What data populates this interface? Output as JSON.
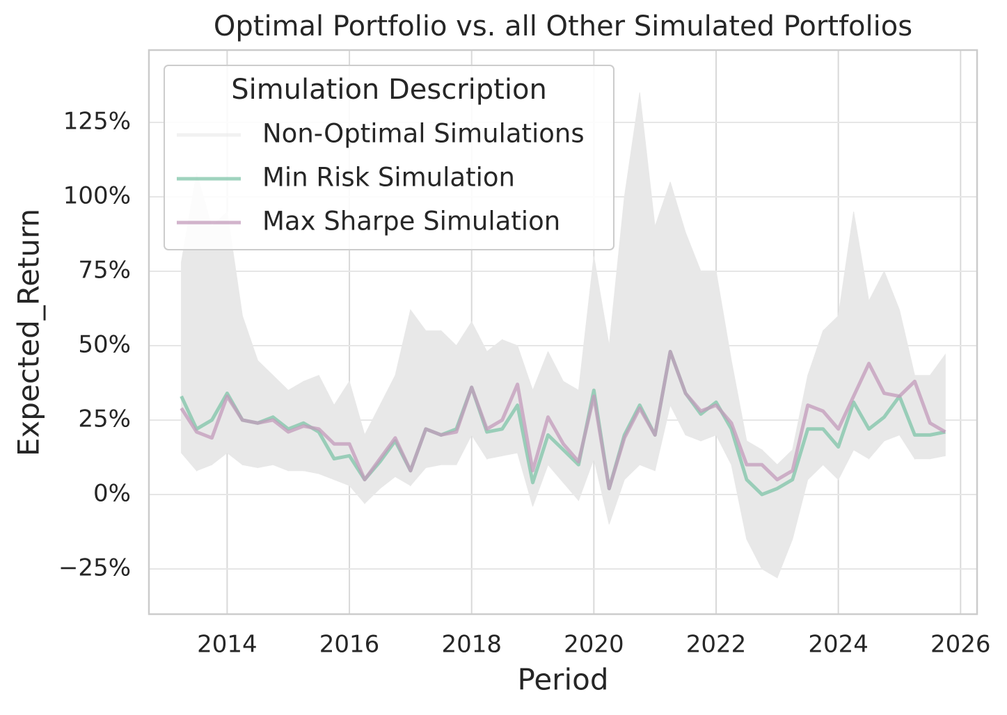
{
  "chart_data": {
    "type": "line",
    "title": "Optimal Portfolio vs. all Other Simulated Portfolios",
    "x_label": "Period",
    "y_label": "Expected_Return",
    "legend_title": "Simulation Description",
    "legend": "upper left",
    "grid": true,
    "x": [
      2013.25,
      2013.5,
      2013.75,
      2014,
      2014.25,
      2014.5,
      2014.75,
      2015,
      2015.25,
      2015.5,
      2015.75,
      2016,
      2016.25,
      2016.5,
      2016.75,
      2017,
      2017.25,
      2017.5,
      2017.75,
      2018,
      2018.25,
      2018.5,
      2018.75,
      2019,
      2019.25,
      2019.5,
      2019.75,
      2020,
      2020.25,
      2020.5,
      2020.75,
      2021,
      2021.25,
      2021.5,
      2021.75,
      2022,
      2022.25,
      2022.5,
      2022.75,
      2023,
      2023.25,
      2023.5,
      2023.75,
      2024,
      2024.25,
      2024.5,
      2024.75,
      2025,
      2025.25,
      2025.5,
      2025.75
    ],
    "xlim": [
      2012.72,
      2026.27
    ],
    "xticks": [
      2014,
      2016,
      2018,
      2020,
      2022,
      2024,
      2026
    ],
    "ylim": [
      -40.2,
      149.3
    ],
    "yticks": [
      {
        "value": -25,
        "label": "−25%"
      },
      {
        "value": 0,
        "label": "0%"
      },
      {
        "value": 25,
        "label": "25%"
      },
      {
        "value": 50,
        "label": "50%"
      },
      {
        "value": 75,
        "label": "75%"
      },
      {
        "value": 100,
        "label": "100%"
      },
      {
        "value": 125,
        "label": "125%"
      }
    ],
    "series": [
      {
        "name": "Non-Optimal Simulations",
        "color": "#e8e8e8",
        "low": [
          14,
          8,
          10,
          14,
          10,
          9,
          10,
          8,
          8,
          7,
          5,
          3,
          -3,
          2,
          6,
          3,
          9,
          10,
          10,
          20,
          12,
          13,
          14,
          -4,
          10,
          4,
          -2,
          12,
          -10,
          5,
          10,
          8,
          30,
          20,
          18,
          20,
          10,
          -15,
          -25,
          -28,
          -15,
          5,
          10,
          5,
          15,
          12,
          18,
          20,
          12,
          12,
          13
        ],
        "high": [
          78,
          108,
          90,
          95,
          60,
          45,
          40,
          35,
          38,
          40,
          30,
          38,
          20,
          30,
          40,
          62,
          55,
          55,
          50,
          58,
          48,
          52,
          50,
          35,
          48,
          38,
          35,
          80,
          50,
          100,
          135,
          90,
          105,
          88,
          75,
          75,
          45,
          18,
          15,
          10,
          15,
          40,
          55,
          60,
          95,
          65,
          75,
          62,
          40,
          40,
          47
        ]
      },
      {
        "name": "Min Risk Simulation",
        "color": "#7fc4a8",
        "values": [
          33,
          22,
          25,
          34,
          25,
          24,
          26,
          22,
          24,
          21,
          12,
          13,
          5,
          11,
          18,
          8,
          22,
          20,
          22,
          36,
          21,
          22,
          30,
          4,
          20,
          15,
          10,
          35,
          2,
          20,
          30,
          20,
          48,
          34,
          27,
          31,
          22,
          5,
          0,
          2,
          5,
          22,
          22,
          16,
          31,
          22,
          26,
          33,
          20,
          20,
          21
        ]
      },
      {
        "name": "Max Sharpe Simulation",
        "color": "#c39bbb",
        "values": [
          29,
          21,
          19,
          33,
          25,
          24,
          25,
          21,
          23,
          22,
          17,
          17,
          5,
          12,
          19,
          8,
          22,
          20,
          21,
          36,
          22,
          25,
          37,
          8,
          26,
          17,
          11,
          33,
          2,
          19,
          29,
          20,
          48,
          34,
          28,
          30,
          24,
          10,
          10,
          5,
          8,
          30,
          28,
          22,
          33,
          44,
          34,
          33,
          38,
          24,
          21
        ]
      }
    ]
  }
}
